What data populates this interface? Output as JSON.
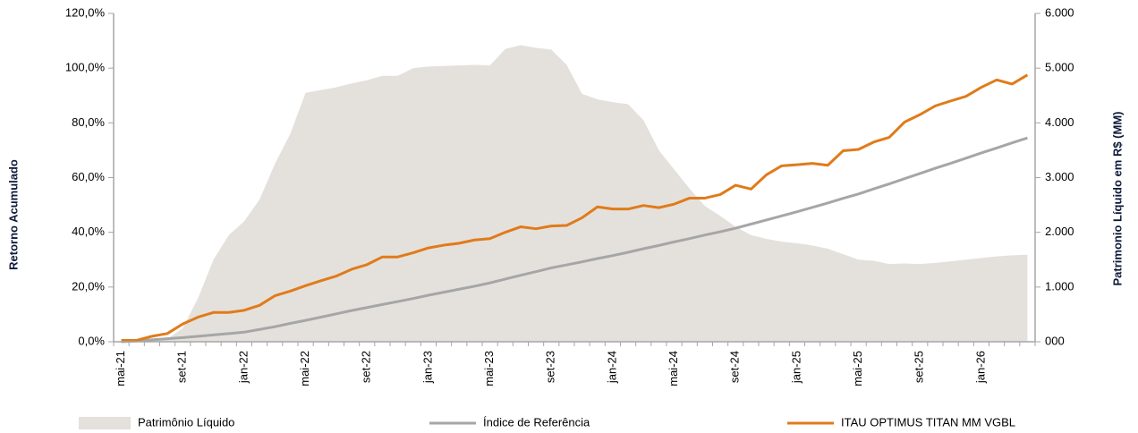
{
  "chart_data": {
    "type": "line",
    "y_title": "Retorno Acumulado",
    "y2_title": "Patrimonio Líquido em R$ (MM)",
    "categories": [
      "mai-21",
      null,
      null,
      null,
      "set-21",
      null,
      null,
      null,
      "jan-22",
      null,
      null,
      null,
      "mai-22",
      null,
      null,
      null,
      "set-22",
      null,
      null,
      null,
      "jan-23",
      null,
      null,
      null,
      "mai-23",
      null,
      null,
      null,
      "set-23",
      null,
      null,
      null,
      "jan-24",
      null,
      null,
      null,
      "mai-24",
      null,
      null,
      null,
      "set-24",
      null,
      null,
      null,
      "jan-25",
      null,
      null,
      null,
      "mai-25",
      null,
      null,
      null,
      "set-25",
      null,
      null,
      null,
      "jan-26",
      null,
      null,
      null
    ],
    "ylim": [
      0,
      120
    ],
    "yticks": [
      {
        "value": 0,
        "label": "0,0%"
      },
      {
        "value": 20,
        "label": "20,0%"
      },
      {
        "value": 40,
        "label": "40,0%"
      },
      {
        "value": 60,
        "label": "60,0%"
      },
      {
        "value": 80,
        "label": "80,0%"
      },
      {
        "value": 100,
        "label": "100,0%"
      },
      {
        "value": 120,
        "label": "120,0%"
      }
    ],
    "y2lim": [
      0,
      6000
    ],
    "y2ticks": [
      {
        "value": 0,
        "label": "000"
      },
      {
        "value": 1000,
        "label": "1.000"
      },
      {
        "value": 2000,
        "label": "2.000"
      },
      {
        "value": 3000,
        "label": "3.000"
      },
      {
        "value": 4000,
        "label": "4.000"
      },
      {
        "value": 5000,
        "label": "5.000"
      },
      {
        "value": 6000,
        "label": "6.000"
      }
    ],
    "legend": "bottom",
    "series": [
      {
        "name": "Patrimônio Líquido",
        "type": "area",
        "axis": "y2",
        "color": "#e4e1dd",
        "values": [
          0,
          0,
          0,
          50,
          250,
          800,
          1500,
          1950,
          2200,
          2600,
          3250,
          3800,
          4550,
          4600,
          4650,
          4720,
          4780,
          4860,
          4860,
          5000,
          5030,
          5040,
          5050,
          5060,
          5050,
          5350,
          5420,
          5370,
          5340,
          5060,
          4530,
          4430,
          4380,
          4340,
          4050,
          3500,
          3150,
          2800,
          2480,
          2300,
          2100,
          1950,
          1880,
          1830,
          1800,
          1760,
          1700,
          1600,
          1500,
          1480,
          1420,
          1430,
          1420,
          1440,
          1470,
          1500,
          1530,
          1560,
          1580,
          1590
        ]
      },
      {
        "name": "Índice de Referência",
        "type": "line",
        "color": "#a6a6a6",
        "values": [
          0,
          0.3,
          0.7,
          1.1,
          1.5,
          2,
          2.5,
          3,
          3.5,
          4.5,
          5.5,
          6.7,
          7.8,
          9,
          10.2,
          11.4,
          12.5,
          13.6,
          14.7,
          15.8,
          17,
          18.1,
          19.2,
          20.3,
          21.5,
          22.9,
          24.3,
          25.6,
          27,
          28.1,
          29.2,
          30.4,
          31.5,
          32.7,
          34,
          35.2,
          36.5,
          37.7,
          39,
          40.2,
          41.5,
          43,
          44.5,
          46,
          47.5,
          49.1,
          50.7,
          52.4,
          54,
          55.9,
          57.7,
          59.6,
          61.5,
          63.4,
          65.2,
          67.1,
          69,
          70.8,
          72.7,
          74.5
        ]
      },
      {
        "name": "ITAU OPTIMUS TITAN MM VGBL",
        "type": "line",
        "color": "#e07b1a",
        "values": [
          0.5,
          0.5,
          2,
          3,
          6.5,
          9,
          10.7,
          10.7,
          11.5,
          13.3,
          16.8,
          18.5,
          20.5,
          22.3,
          24,
          26.5,
          28.2,
          31,
          31,
          32.5,
          34.3,
          35.3,
          36,
          37.2,
          37.7,
          40,
          42,
          41.3,
          42.3,
          42.5,
          45.3,
          49.3,
          48.5,
          48.5,
          49.8,
          49,
          50.3,
          52.5,
          52.5,
          53.8,
          57.2,
          55.8,
          61,
          64.3,
          64.7,
          65.2,
          64.5,
          69.8,
          70.3,
          73,
          74.7,
          80.3,
          83,
          86.2,
          88,
          89.7,
          93,
          95.7,
          94.2,
          97.5
        ]
      }
    ]
  }
}
